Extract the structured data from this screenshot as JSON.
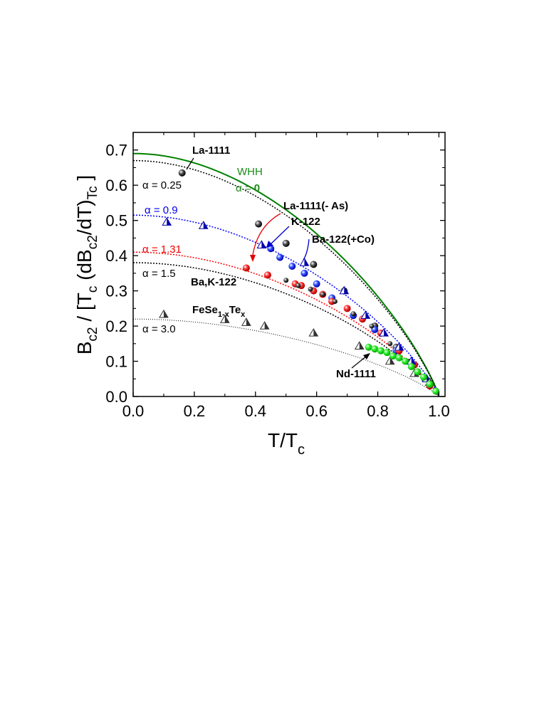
{
  "chart_data": {
    "type": "scatter",
    "xlabel": "T/T",
    "xlabel_sub": "c",
    "ylabel_parts": [
      "B",
      "c2",
      " / [T",
      "c",
      " (dB",
      "c2",
      "/dT)",
      "Tc",
      " ]"
    ],
    "xlim": [
      0.0,
      1.02
    ],
    "ylim": [
      0.0,
      0.75
    ],
    "xticks": [
      0.0,
      0.2,
      0.4,
      0.6,
      0.8,
      1.0
    ],
    "xtick_labels": [
      "0.0",
      "0.2",
      "0.4",
      "0.6",
      "0.8",
      "1.0"
    ],
    "yticks": [
      0.0,
      0.1,
      0.2,
      0.3,
      0.4,
      0.5,
      0.6,
      0.7
    ],
    "ytick_labels": [
      "0.0",
      "0.1",
      "0.2",
      "0.3",
      "0.4",
      "0.5",
      "0.6",
      "0.7"
    ],
    "curves": [
      {
        "name": "WHH α = 0",
        "color": "#008000",
        "style": "solid",
        "y0": 0.69
      },
      {
        "name": "α = 0.25",
        "color": "#000000",
        "style": "dotted",
        "y0": 0.67
      },
      {
        "name": "α = 0.9",
        "color": "#0000ff",
        "style": "dotted",
        "y0": 0.515
      },
      {
        "name": "α = 1.31",
        "color": "#ff0000",
        "style": "dotted",
        "y0": 0.41
      },
      {
        "name": "α = 1.5",
        "color": "#000000",
        "style": "dotted",
        "y0": 0.38
      },
      {
        "name": "α = 3.0",
        "color": "#000000",
        "style": "dotted-fine",
        "y0": 0.22
      }
    ],
    "series": [
      {
        "name": "La-1111",
        "marker": "sphere",
        "color": "#000000",
        "points": [
          [
            0.16,
            0.635
          ],
          [
            0.41,
            0.49
          ],
          [
            0.5,
            0.435
          ],
          [
            0.59,
            0.375
          ],
          [
            0.69,
            0.3
          ],
          [
            0.79,
            0.2
          ],
          [
            0.86,
            0.14
          ],
          [
            0.93,
            0.07
          ]
        ]
      },
      {
        "name": "K-122",
        "marker": "sphere",
        "color": "#0000ff",
        "points": [
          [
            0.45,
            0.42
          ],
          [
            0.48,
            0.395
          ],
          [
            0.52,
            0.37
          ],
          [
            0.56,
            0.35
          ],
          [
            0.6,
            0.32
          ],
          [
            0.65,
            0.28
          ],
          [
            0.72,
            0.23
          ],
          [
            0.79,
            0.19
          ],
          [
            0.86,
            0.13
          ]
        ]
      },
      {
        "name": "La-1111(- As)",
        "marker": "sphere",
        "color": "#ff0000",
        "points": [
          [
            0.37,
            0.365
          ],
          [
            0.44,
            0.345
          ],
          [
            0.53,
            0.32
          ],
          [
            0.55,
            0.315
          ],
          [
            0.59,
            0.3
          ],
          [
            0.62,
            0.29
          ],
          [
            0.65,
            0.27
          ],
          [
            0.7,
            0.25
          ],
          [
            0.75,
            0.22
          ],
          [
            0.81,
            0.18
          ],
          [
            0.87,
            0.13
          ],
          [
            0.92,
            0.09
          ],
          [
            0.97,
            0.03
          ]
        ]
      },
      {
        "name": "Ba,K-122",
        "marker": "sphere-small",
        "color": "#000000",
        "points": [
          [
            0.5,
            0.33
          ],
          [
            0.54,
            0.315
          ],
          [
            0.58,
            0.305
          ],
          [
            0.62,
            0.29
          ],
          [
            0.66,
            0.27
          ],
          [
            0.72,
            0.235
          ],
          [
            0.78,
            0.2
          ],
          [
            0.84,
            0.15
          ],
          [
            0.9,
            0.1
          ],
          [
            0.95,
            0.05
          ]
        ]
      },
      {
        "name": "Ba-122(+Co)",
        "marker": "triangle",
        "color": "#0000aa",
        "points": [
          [
            0.11,
            0.495
          ],
          [
            0.23,
            0.485
          ],
          [
            0.42,
            0.43
          ],
          [
            0.56,
            0.38
          ],
          [
            0.69,
            0.3
          ],
          [
            0.76,
            0.23
          ],
          [
            0.82,
            0.18
          ],
          [
            0.87,
            0.14
          ],
          [
            0.91,
            0.1
          ],
          [
            0.96,
            0.05
          ]
        ]
      },
      {
        "name": "FeSe1-xTex",
        "marker": "triangle",
        "color": "#333333",
        "points": [
          [
            0.1,
            0.233
          ],
          [
            0.3,
            0.218
          ],
          [
            0.37,
            0.21
          ],
          [
            0.43,
            0.2
          ],
          [
            0.59,
            0.18
          ],
          [
            0.74,
            0.143
          ],
          [
            0.84,
            0.1
          ],
          [
            0.92,
            0.065
          ],
          [
            0.97,
            0.04
          ]
        ]
      },
      {
        "name": "Nd-1111",
        "marker": "sphere",
        "color": "#22dd22",
        "points": [
          [
            0.77,
            0.14
          ],
          [
            0.79,
            0.135
          ],
          [
            0.81,
            0.13
          ],
          [
            0.83,
            0.125
          ],
          [
            0.85,
            0.115
          ],
          [
            0.87,
            0.11
          ],
          [
            0.89,
            0.1
          ],
          [
            0.91,
            0.085
          ],
          [
            0.93,
            0.07
          ],
          [
            0.95,
            0.055
          ],
          [
            0.97,
            0.035
          ],
          [
            0.99,
            0.015
          ]
        ]
      }
    ],
    "annotations": {
      "la1111": "La-1111",
      "whh": "WHH",
      "alpha0_prefix": "α = ",
      "alpha0_value": "0",
      "a025": "α = 0.25",
      "a09": "α = 0.9",
      "a131": "α = 1.31",
      "a15": "α = 1.5",
      "a30": "α = 3.0",
      "la1111as": "La-1111(- As)",
      "k122": "K-122",
      "ba122co": "Ba-122(+Co)",
      "bak122": "Ba,K-122",
      "fese_a": "FeSe",
      "fese_b": "1-x",
      "fese_c": "Te",
      "fese_d": "x",
      "nd1111": "Nd-1111"
    }
  }
}
